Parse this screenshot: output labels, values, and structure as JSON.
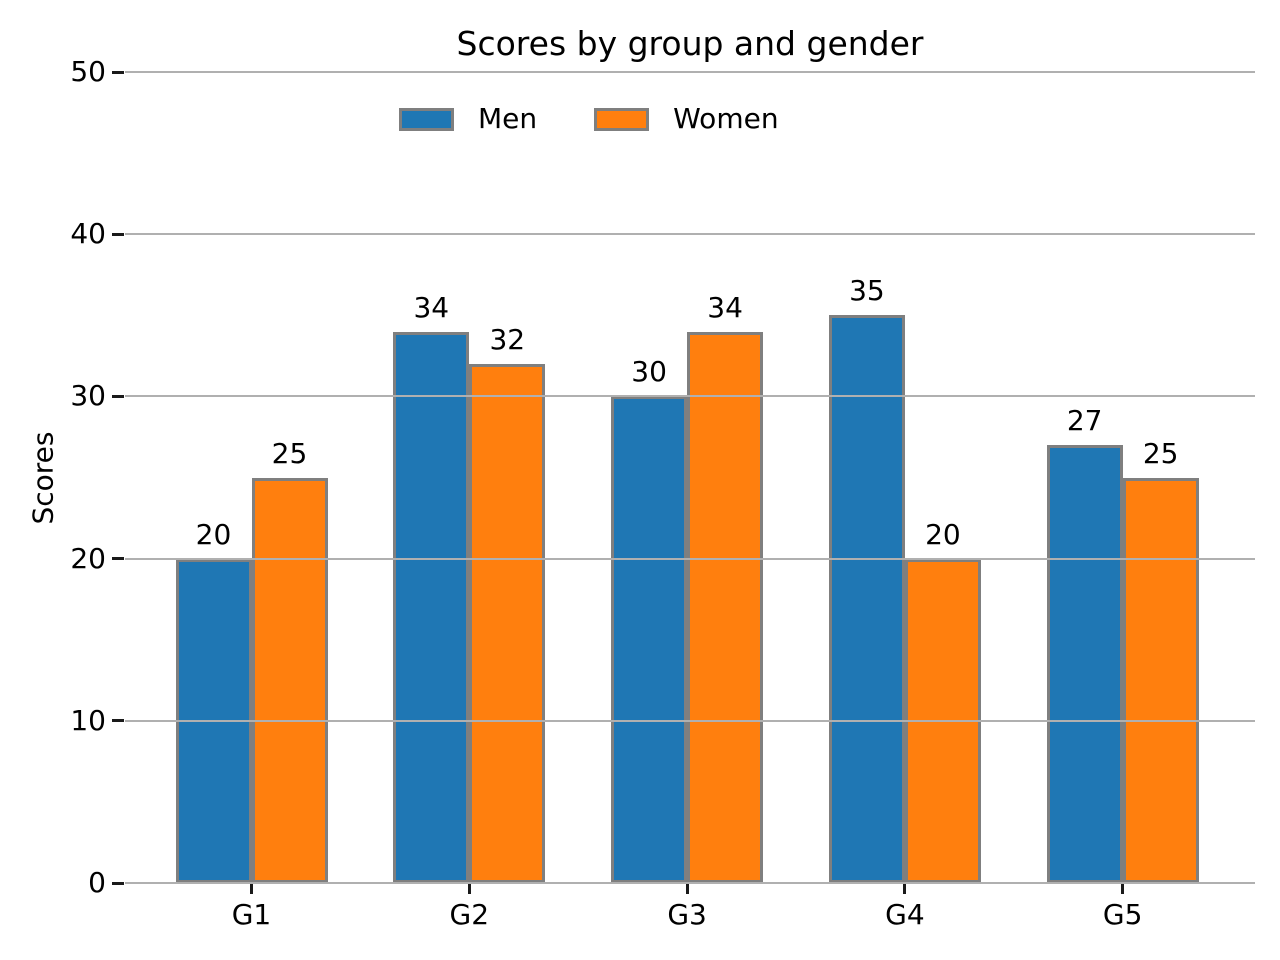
{
  "chart_data": {
    "type": "bar",
    "title": "Scores by group and gender",
    "xlabel": "",
    "ylabel": "Scores",
    "categories": [
      "G1",
      "G2",
      "G3",
      "G4",
      "G5"
    ],
    "series": [
      {
        "name": "Men",
        "color": "#1f77b4",
        "values": [
          20,
          34,
          30,
          35,
          27
        ]
      },
      {
        "name": "Women",
        "color": "#ff7f0e",
        "values": [
          25,
          32,
          34,
          20,
          25
        ]
      }
    ],
    "ylim": [
      0,
      50
    ],
    "yticks": [
      0,
      10,
      20,
      30,
      40,
      50
    ],
    "bar_value_labels_shown": true,
    "grid": "horizontal-on",
    "grid_above_bars": true,
    "legend_position": "upper-center",
    "legend_frame": "none",
    "colors": {
      "men_bar": "#1f77b4",
      "women_bar": "#ff7f0e",
      "bar_edge": "#7f7f7f",
      "gridline": "#b0b0b0",
      "tick": "#1a1a1a",
      "text": "#000000",
      "background": "#ffffff"
    }
  }
}
